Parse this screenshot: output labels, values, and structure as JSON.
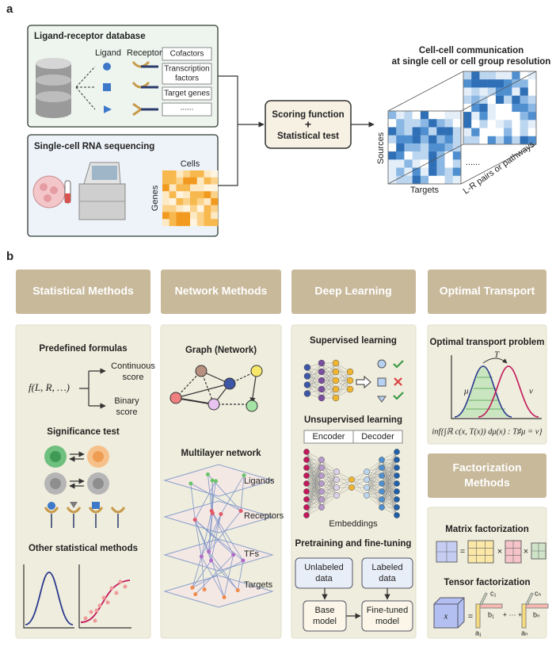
{
  "panel_a": {
    "label": "a",
    "database": {
      "title": "Ligand-receptor database",
      "ligand": "Ligand",
      "receptor": "Receptor",
      "items": [
        [
          "Cofactors"
        ],
        [
          "Transcription",
          "factors"
        ],
        [
          "Target genes"
        ],
        [
          "......"
        ]
      ]
    },
    "sequencing": {
      "title": "Single-cell RNA sequencing",
      "cells": "Cells",
      "genes": "Genes"
    },
    "scoring": {
      "lines": [
        "Scoring function",
        "+",
        "Statistical test"
      ]
    },
    "output": {
      "title": [
        "Cell-cell communication",
        "at single cell or cell group resolution"
      ],
      "sources": "Sources",
      "targets": "Targets",
      "ellipsis": "......",
      "layers": "L-R pairs or pathways"
    }
  },
  "panel_b": {
    "label": "b",
    "statistical": {
      "header": "Statistical Methods",
      "formulas_title": "Predefined formulas",
      "formula": "f(L, R, …)",
      "continuous": [
        "Continuous",
        "score"
      ],
      "binary": [
        "Binary",
        "score"
      ],
      "significance_title": "Significance test",
      "other_title": "Other statistical methods"
    },
    "network": {
      "header": "Network Methods",
      "graph_title": "Graph (Network)",
      "multilayer_title": "Multilayer network",
      "layers": [
        "Ligands",
        "Receptors",
        "TFs",
        "Targets"
      ]
    },
    "deep": {
      "header": "Deep Learning",
      "supervised_title": "Supervised learning",
      "unsupervised_title": "Unsupervised learning",
      "encoder": "Encoder",
      "decoder": "Decoder",
      "embeddings": "Embeddings",
      "pretraining_title": "Pretraining and fine-tuning",
      "unlabeled": [
        "Unlabeled",
        "data"
      ],
      "labeled": [
        "Labeled",
        "data"
      ],
      "base": [
        "Base",
        "model"
      ],
      "finetuned": [
        "Fine-tuned",
        "model"
      ]
    },
    "optimal_transport": {
      "header": "Optimal Transport",
      "title": "Optimal transport problem",
      "mu": "μ",
      "t": "T",
      "nu": "ν",
      "formula": "inf{∫ℝ c(x, T(x)) dμ(x) : T♯μ = ν}"
    },
    "factorization": {
      "header": [
        "Factorization",
        "Methods"
      ],
      "matrix_title": "Matrix factorization",
      "equals": "=",
      "times": "×",
      "tensor_title": "Tensor factorization",
      "x": "x",
      "c1": "c₁",
      "b1": "b₁",
      "a1": "a₁",
      "plus": "+ ··· +",
      "cn": "cₙ",
      "bn": "bₙ",
      "an": "aₙ"
    }
  }
}
